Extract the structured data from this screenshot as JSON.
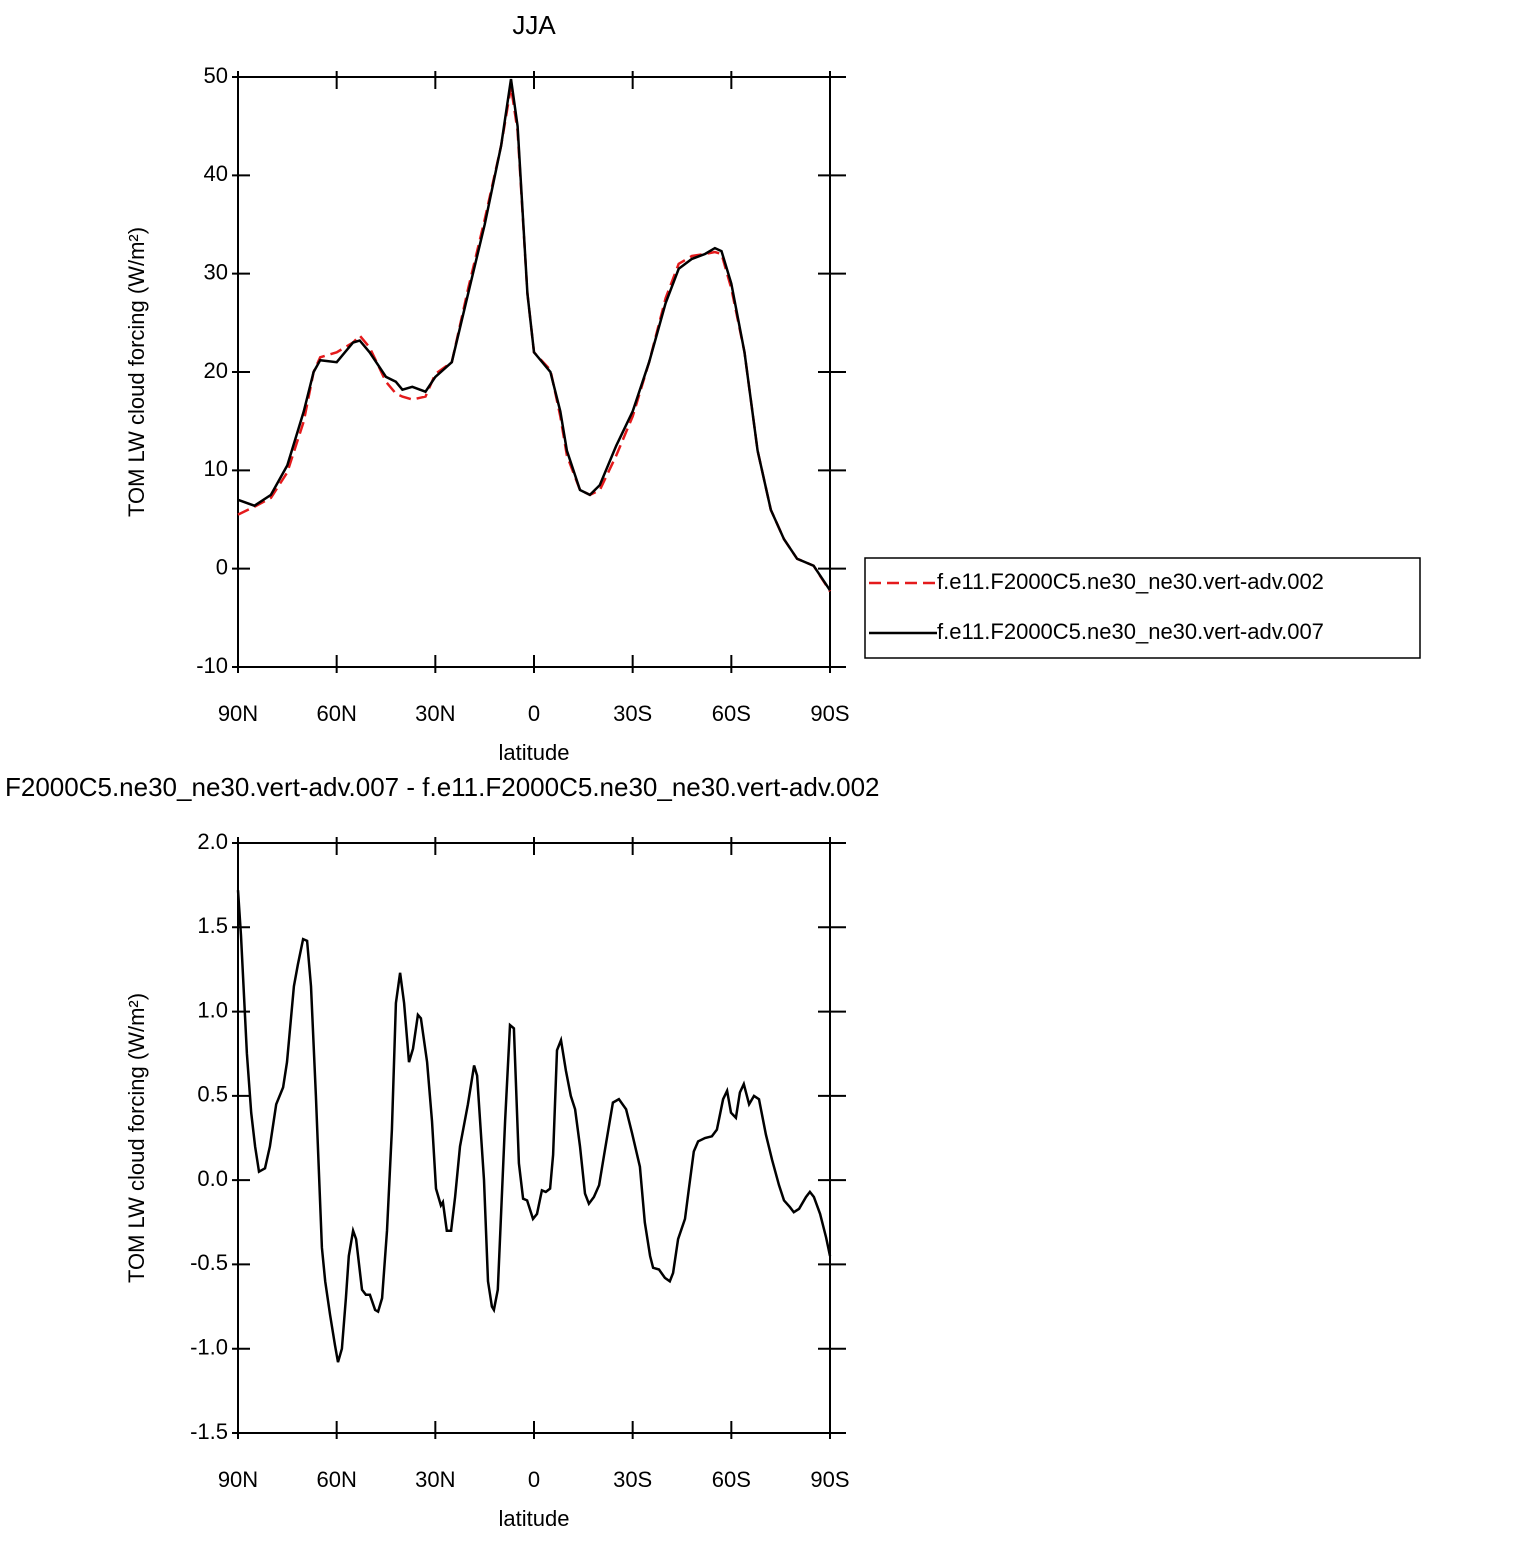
{
  "chart_data": [
    {
      "type": "line",
      "title": "JJA",
      "ylabel": "TOM LW cloud forcing (W/m²)",
      "xlabel": "latitude",
      "x": [
        90,
        85,
        80,
        75,
        70,
        67,
        65,
        60,
        55,
        53,
        50,
        45,
        42,
        40,
        37,
        33,
        30,
        25,
        20,
        15,
        10,
        7,
        5,
        2,
        0,
        -5,
        -8,
        -10,
        -14,
        -17,
        -20,
        -25,
        -30,
        -35,
        -40,
        -44,
        -48,
        -52,
        -55,
        -57,
        -60,
        -64,
        -68,
        -72,
        -76,
        -80,
        -85,
        -90
      ],
      "series": [
        {
          "name": "f.e11.F2000C5.ne30_ne30.vert-adv.002",
          "color": "#e41a1c",
          "linestyle": "dashed",
          "values": [
            5.5,
            6.3,
            7.2,
            9.8,
            15,
            20,
            21.5,
            22,
            23,
            23.7,
            22.5,
            19,
            17.8,
            17.5,
            17.2,
            17.5,
            19.8,
            21,
            28.5,
            35.5,
            43,
            49,
            44.5,
            28,
            22,
            20.2,
            15.5,
            11.5,
            8,
            7.5,
            8,
            11.5,
            15.5,
            21,
            27.5,
            31,
            31.8,
            32,
            32.2,
            32,
            28.5,
            22,
            12,
            6,
            3,
            1,
            0.3,
            -2.3
          ]
        },
        {
          "name": "f.e11.F2000C5.ne30_ne30.vert-adv.007",
          "color": "#000000",
          "linestyle": "solid",
          "values": [
            7.0,
            6.4,
            7.5,
            10.5,
            16,
            20,
            21.2,
            21.0,
            23,
            23.2,
            22,
            19.5,
            19,
            18.2,
            18.5,
            18,
            19.5,
            21,
            28,
            35,
            43,
            49.8,
            45,
            28,
            22,
            20,
            16,
            12,
            8,
            7.5,
            8.5,
            12.5,
            16,
            21,
            27,
            30.5,
            31.5,
            32,
            32.6,
            32.3,
            29,
            22,
            12,
            6,
            3,
            1,
            0.3,
            -2.2
          ]
        }
      ],
      "xlim": [
        90,
        -90
      ],
      "xticks": [
        {
          "value": 90,
          "label": "90N"
        },
        {
          "value": 60,
          "label": "60N"
        },
        {
          "value": 30,
          "label": "30N"
        },
        0,
        {
          "value": -30,
          "label": "30S"
        },
        {
          "value": -60,
          "label": "60S"
        },
        {
          "value": -90,
          "label": "90S"
        }
      ],
      "ylim": [
        -10,
        50
      ],
      "yticks": [
        -10,
        0,
        10,
        20,
        30,
        40,
        50
      ],
      "legend": "right"
    },
    {
      "type": "line",
      "title": "F2000C5.ne30_ne30.vert-adv.007 - f.e11.F2000C5.ne30_ne30.vert-adv.002",
      "ylabel": "TOM LW cloud forcing (W/m²)",
      "xlabel": "latitude",
      "x": [
        90,
        89.1,
        87.3,
        86.0,
        84.8,
        83.6,
        81.8,
        80.3,
        78.4,
        76.3,
        75.1,
        73.0,
        71.8,
        70.2,
        69.0,
        67.8,
        66.3,
        64.5,
        63.5,
        62.0,
        60.5,
        59.6,
        58.4,
        57.2,
        56.3,
        55.0,
        54.1,
        52.3,
        51.1,
        49.9,
        48.3,
        47.4,
        46.2,
        44.7,
        43.2,
        42.0,
        40.7,
        39.5,
        38.0,
        36.8,
        35.3,
        34.4,
        32.5,
        31.0,
        29.8,
        28.3,
        27.7,
        26.5,
        25.2,
        24.0,
        22.5,
        20.1,
        18.2,
        17.3,
        15.2,
        14.0,
        12.8,
        12.2,
        11.0,
        8.8,
        7.3,
        6.1,
        4.6,
        3.3,
        2.1,
        0.3,
        -0.9,
        -2.4,
        -3.6,
        -4.9,
        -5.8,
        -7.0,
        -8.2,
        -9.7,
        -11.2,
        -12.5,
        -14.0,
        -15.5,
        -16.7,
        -18.2,
        -19.8,
        -21.3,
        -24.0,
        -25.8,
        -28.0,
        -29.8,
        -32.2,
        -33.7,
        -35.3,
        -36.2,
        -38.0,
        -39.8,
        -41.3,
        -42.3,
        -43.8,
        -45.9,
        -47.1,
        -48.6,
        -49.9,
        -52.0,
        -54.1,
        -55.6,
        -57.5,
        -58.7,
        -59.9,
        -61.4,
        -62.6,
        -63.8,
        -65.4,
        -66.9,
        -68.4,
        -70.5,
        -72.4,
        -74.5,
        -76.0,
        -77.8,
        -79.0,
        -80.6,
        -82.7,
        -83.9,
        -85.1,
        -87.0,
        -88.8,
        -90
      ],
      "series": [
        {
          "color": "#000000",
          "linestyle": "solid",
          "values": [
            1.72,
            1.45,
            0.75,
            0.4,
            0.2,
            0.05,
            0.07,
            0.2,
            0.45,
            0.55,
            0.7,
            1.15,
            1.28,
            1.43,
            1.42,
            1.15,
            0.5,
            -0.4,
            -0.6,
            -0.8,
            -0.98,
            -1.08,
            -1.0,
            -0.7,
            -0.45,
            -0.3,
            -0.35,
            -0.65,
            -0.68,
            -0.68,
            -0.77,
            -0.78,
            -0.7,
            -0.3,
            0.3,
            1.05,
            1.23,
            1.05,
            0.7,
            0.78,
            0.98,
            0.96,
            0.7,
            0.35,
            -0.05,
            -0.15,
            -0.13,
            -0.3,
            -0.3,
            -0.1,
            0.2,
            0.45,
            0.68,
            0.62,
            0.0,
            -0.6,
            -0.75,
            -0.77,
            -0.65,
            0.35,
            0.92,
            0.9,
            0.1,
            -0.11,
            -0.12,
            -0.23,
            -0.2,
            -0.06,
            -0.07,
            -0.05,
            0.15,
            0.77,
            0.83,
            0.65,
            0.5,
            0.42,
            0.2,
            -0.08,
            -0.14,
            -0.1,
            -0.03,
            0.15,
            0.46,
            0.48,
            0.42,
            0.28,
            0.08,
            -0.25,
            -0.45,
            -0.52,
            -0.53,
            -0.58,
            -0.6,
            -0.55,
            -0.35,
            -0.23,
            -0.05,
            0.17,
            0.23,
            0.25,
            0.26,
            0.3,
            0.48,
            0.53,
            0.4,
            0.37,
            0.52,
            0.57,
            0.45,
            0.5,
            0.48,
            0.27,
            0.12,
            -0.03,
            -0.12,
            -0.16,
            -0.19,
            -0.17,
            -0.1,
            -0.07,
            -0.1,
            -0.2,
            -0.34,
            -0.45
          ]
        }
      ],
      "xlim": [
        90,
        -90
      ],
      "xticks": [
        {
          "value": 90,
          "label": "90N"
        },
        {
          "value": 60,
          "label": "60N"
        },
        {
          "value": 30,
          "label": "30N"
        },
        0,
        {
          "value": -30,
          "label": "30S"
        },
        {
          "value": -60,
          "label": "60S"
        },
        {
          "value": -90,
          "label": "90S"
        }
      ],
      "ylim": [
        -1.5,
        2.0
      ],
      "yticks": [
        -1.5,
        {
          "value": -1,
          "label": "-1.0"
        },
        -0.5,
        {
          "value": 0,
          "label": "0.0"
        },
        0.5,
        {
          "value": 1,
          "label": "1.0"
        },
        1.5,
        {
          "value": 2,
          "label": "2.0"
        }
      ]
    }
  ]
}
